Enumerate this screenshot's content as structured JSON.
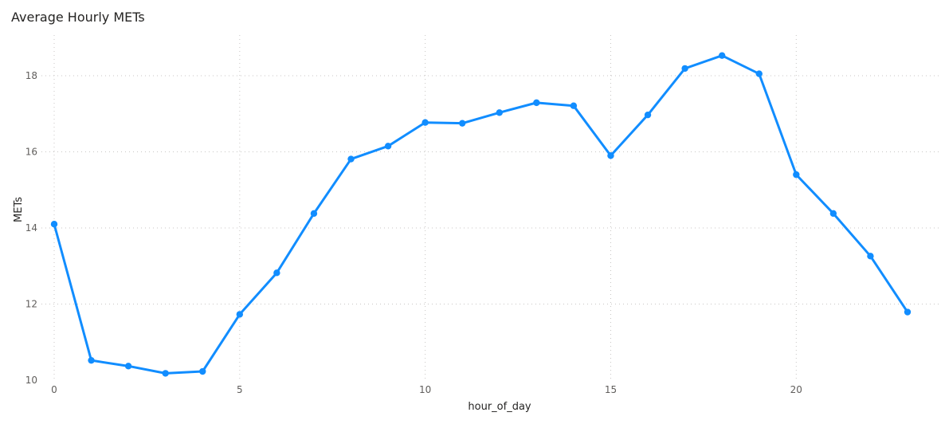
{
  "chart_data": {
    "type": "line",
    "title": "Average Hourly METs",
    "xlabel": "hour_of_day",
    "ylabel": "METs",
    "x": [
      0,
      1,
      2,
      3,
      4,
      5,
      6,
      7,
      8,
      9,
      10,
      11,
      12,
      13,
      14,
      15,
      16,
      17,
      18,
      19,
      20,
      21,
      22,
      23
    ],
    "series": [
      {
        "values": [
          14.1,
          10.52,
          10.37,
          10.18,
          10.23,
          11.73,
          12.82,
          14.38,
          15.81,
          16.15,
          16.77,
          16.75,
          17.03,
          17.29,
          17.21,
          15.9,
          16.97,
          18.19,
          18.53,
          18.05,
          15.4,
          14.38,
          13.26,
          11.79
        ],
        "color": "#118dff"
      }
    ],
    "xlim": [
      0,
      23
    ],
    "ylim": [
      10,
      18.9
    ],
    "x_ticks": [
      0,
      5,
      10,
      15,
      20
    ],
    "y_ticks": [
      10,
      12,
      14,
      16,
      18
    ],
    "grid": true,
    "legend": "none"
  }
}
